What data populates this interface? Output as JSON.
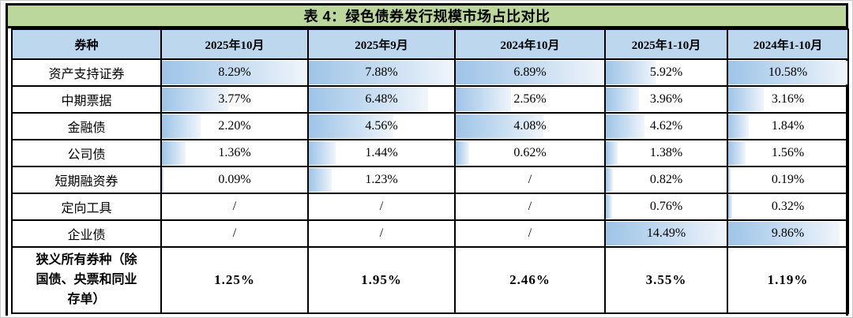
{
  "title": "表 4：绿色债券发行规模市场占比对比",
  "table": {
    "columns": [
      "券种",
      "2025年10月",
      "2025年9月",
      "2024年10月",
      "2025年1-10月",
      "2024年1-10月"
    ],
    "rows": [
      {
        "label": "资产支持证券",
        "values": [
          "8.29%",
          "7.88%",
          "6.89%",
          "5.92%",
          "10.58%"
        ]
      },
      {
        "label": "中期票据",
        "values": [
          "3.77%",
          "6.48%",
          "2.56%",
          "3.96%",
          "3.16%"
        ]
      },
      {
        "label": "金融债",
        "values": [
          "2.20%",
          "4.56%",
          "4.08%",
          "4.62%",
          "1.84%"
        ]
      },
      {
        "label": "公司债",
        "values": [
          "1.36%",
          "1.44%",
          "0.62%",
          "1.38%",
          "1.56%"
        ]
      },
      {
        "label": "短期融资券",
        "values": [
          "0.09%",
          "1.23%",
          "/",
          "0.82%",
          "0.19%"
        ]
      },
      {
        "label": "定向工具",
        "values": [
          "/",
          "/",
          "/",
          "0.76%",
          "0.32%"
        ]
      },
      {
        "label": "企业债",
        "values": [
          "/",
          "/",
          "/",
          "14.49%",
          "9.86%"
        ]
      }
    ],
    "summary_row": {
      "label": "狭义所有券种（除\n国债、央票和同业\n存单）",
      "values": [
        "1.25%",
        "1.95%",
        "2.46%",
        "3.55%",
        "1.19%"
      ]
    },
    "missing_marker": "/"
  },
  "chart_data": {
    "type": "table",
    "title": "表 4：绿色债券发行规模市场占比对比",
    "categories": [
      "资产支持证券",
      "中期票据",
      "金融债",
      "公司债",
      "短期融资券",
      "定向工具",
      "企业债",
      "狭义所有券种（除国债、央票和同业存单）"
    ],
    "series": [
      {
        "name": "2025年10月",
        "values": [
          8.29,
          3.77,
          2.2,
          1.36,
          0.09,
          null,
          null,
          1.25
        ]
      },
      {
        "name": "2025年9月",
        "values": [
          7.88,
          6.48,
          4.56,
          1.44,
          1.23,
          null,
          null,
          1.95
        ]
      },
      {
        "name": "2024年10月",
        "values": [
          6.89,
          2.56,
          4.08,
          0.62,
          null,
          null,
          null,
          2.46
        ]
      },
      {
        "name": "2025年1-10月",
        "values": [
          5.92,
          3.96,
          4.62,
          1.38,
          0.82,
          0.76,
          14.49,
          3.55
        ]
      },
      {
        "name": "2024年1-10月",
        "values": [
          10.58,
          3.16,
          1.84,
          1.56,
          0.19,
          0.32,
          9.86,
          1.19
        ]
      }
    ],
    "unit": "%",
    "missing_marker": "/",
    "databars": "blue horizontal gradient bars in each cell, width scaled to each column's maximum among the first 7 rows; summary row has no bars"
  },
  "colors": {
    "title_bg": "#bcd79c",
    "header_bg": "#bdd7ee",
    "bar_start": "#9ec4e7",
    "bar_end": "#f0f5fb",
    "border": "#000000"
  }
}
